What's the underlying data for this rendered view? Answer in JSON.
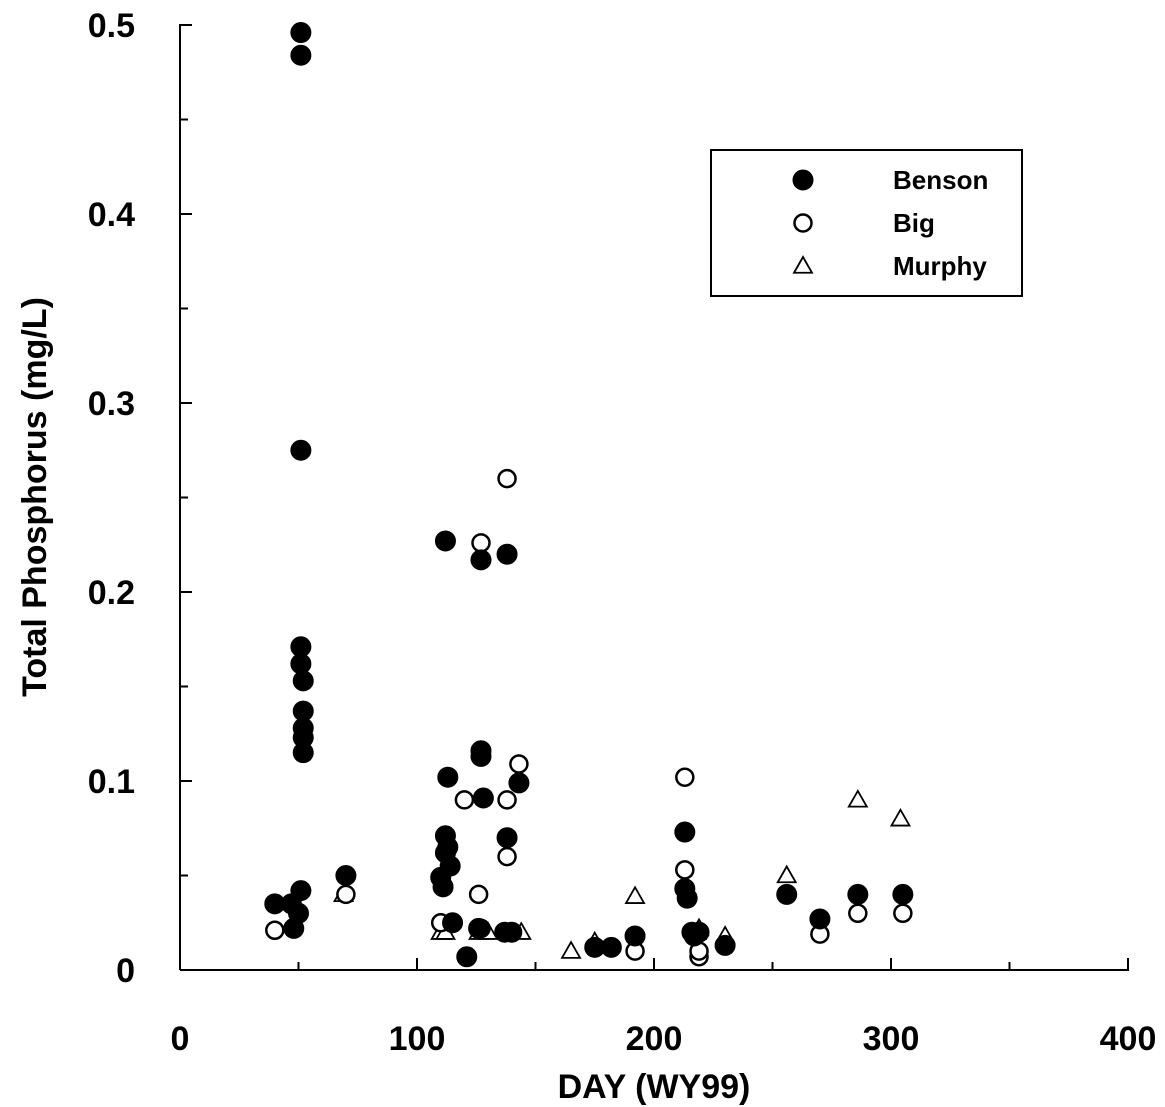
{
  "chart_data": {
    "type": "scatter",
    "title": "",
    "xlabel": "DAY (WY99)",
    "ylabel": "Total Phosphorus (mg/L)",
    "xlim": [
      0,
      400
    ],
    "ylim": [
      0,
      0.5
    ],
    "x_ticks": [
      "0",
      "100",
      "200",
      "300",
      "400"
    ],
    "y_ticks": [
      "0",
      "0.1",
      "0.2",
      "0.3",
      "0.4",
      "0.5"
    ],
    "grid": false,
    "legend_position": "top-right",
    "series": [
      {
        "name": "Benson",
        "marker": "filled-circle",
        "color": "#000000",
        "points": [
          [
            40,
            0.035
          ],
          [
            47,
            0.035
          ],
          [
            48,
            0.022
          ],
          [
            50,
            0.03
          ],
          [
            51,
            0.042
          ],
          [
            51,
            0.496
          ],
          [
            51,
            0.484
          ],
          [
            51,
            0.275
          ],
          [
            51,
            0.171
          ],
          [
            51,
            0.162
          ],
          [
            52,
            0.153
          ],
          [
            52,
            0.137
          ],
          [
            52,
            0.128
          ],
          [
            52,
            0.123
          ],
          [
            52,
            0.115
          ],
          [
            70,
            0.05
          ],
          [
            110,
            0.049
          ],
          [
            111,
            0.044
          ],
          [
            112,
            0.062
          ],
          [
            112,
            0.071
          ],
          [
            112,
            0.227
          ],
          [
            113,
            0.102
          ],
          [
            113,
            0.065
          ],
          [
            114,
            0.055
          ],
          [
            115,
            0.025
          ],
          [
            121,
            0.007
          ],
          [
            126,
            0.022
          ],
          [
            127,
            0.217
          ],
          [
            127,
            0.116
          ],
          [
            127,
            0.113
          ],
          [
            128,
            0.091
          ],
          [
            137,
            0.02
          ],
          [
            138,
            0.22
          ],
          [
            138,
            0.07
          ],
          [
            140,
            0.02
          ],
          [
            143,
            0.099
          ],
          [
            175,
            0.012
          ],
          [
            182,
            0.012
          ],
          [
            192,
            0.018
          ],
          [
            213,
            0.073
          ],
          [
            213,
            0.043
          ],
          [
            214,
            0.038
          ],
          [
            216,
            0.02
          ],
          [
            217,
            0.018
          ],
          [
            219,
            0.02
          ],
          [
            230,
            0.013
          ],
          [
            256,
            0.04
          ],
          [
            270,
            0.027
          ],
          [
            286,
            0.04
          ],
          [
            305,
            0.04
          ]
        ]
      },
      {
        "name": "Big",
        "marker": "open-circle",
        "color": "#000000",
        "points": [
          [
            40,
            0.021
          ],
          [
            70,
            0.04
          ],
          [
            110,
            0.025
          ],
          [
            120,
            0.09
          ],
          [
            126,
            0.04
          ],
          [
            127,
            0.226
          ],
          [
            127,
            0.022
          ],
          [
            138,
            0.26
          ],
          [
            138,
            0.09
          ],
          [
            138,
            0.06
          ],
          [
            143,
            0.109
          ],
          [
            192,
            0.01
          ],
          [
            213,
            0.102
          ],
          [
            213,
            0.053
          ],
          [
            219,
            0.007
          ],
          [
            219,
            0.01
          ],
          [
            270,
            0.019
          ],
          [
            286,
            0.03
          ],
          [
            305,
            0.03
          ]
        ]
      },
      {
        "name": "Murphy",
        "marker": "open-triangle",
        "color": "#000000",
        "points": [
          [
            69,
            0.04
          ],
          [
            110,
            0.02
          ],
          [
            112,
            0.02
          ],
          [
            126,
            0.02
          ],
          [
            130,
            0.02
          ],
          [
            144,
            0.02
          ],
          [
            165,
            0.01
          ],
          [
            175,
            0.015
          ],
          [
            192,
            0.039
          ],
          [
            218,
            0.02
          ],
          [
            219,
            0.022
          ],
          [
            230,
            0.018
          ],
          [
            256,
            0.05
          ],
          [
            286,
            0.09
          ],
          [
            304,
            0.08
          ]
        ]
      }
    ]
  }
}
